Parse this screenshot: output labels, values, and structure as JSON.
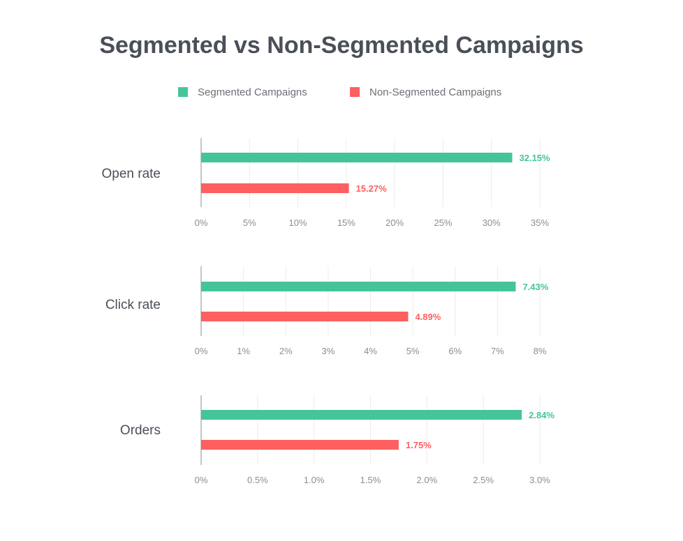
{
  "title": "Segmented vs Non-Segmented Campaigns",
  "colors": {
    "segmented": "#45c49a",
    "non_segmented": "#fe5f5f",
    "grid": "#ececec",
    "axis": "#8c8c8c",
    "title": "#4a4f58"
  },
  "legend": {
    "placement": "top-center",
    "items": [
      {
        "label": "Segmented Campaigns",
        "color": "#45c49a"
      },
      {
        "label": "Non-Segmented Campaigns",
        "color": "#fe5f5f"
      }
    ]
  },
  "chart_data": [
    {
      "type": "bar",
      "orientation": "horizontal",
      "category": "Open rate",
      "series": [
        {
          "name": "Segmented Campaigns",
          "value": 32.15,
          "label": "32.15%"
        },
        {
          "name": "Non-Segmented Campaigns",
          "value": 15.27,
          "label": "15.27%"
        }
      ],
      "xlim": [
        0,
        35
      ],
      "ticks": [
        0,
        5,
        10,
        15,
        20,
        25,
        30,
        35
      ],
      "tick_labels": [
        "0%",
        "5%",
        "10%",
        "15%",
        "20%",
        "25%",
        "30%",
        "35%"
      ],
      "grid": true
    },
    {
      "type": "bar",
      "orientation": "horizontal",
      "category": "Click rate",
      "series": [
        {
          "name": "Segmented Campaigns",
          "value": 7.43,
          "label": "7.43%"
        },
        {
          "name": "Non-Segmented Campaigns",
          "value": 4.89,
          "label": "4.89%"
        }
      ],
      "xlim": [
        0,
        8
      ],
      "ticks": [
        0,
        1,
        2,
        3,
        4,
        5,
        6,
        7,
        8
      ],
      "tick_labels": [
        "0%",
        "1%",
        "2%",
        "3%",
        "4%",
        "5%",
        "6%",
        "7%",
        "8%"
      ],
      "grid": true
    },
    {
      "type": "bar",
      "orientation": "horizontal",
      "category": "Orders",
      "series": [
        {
          "name": "Segmented Campaigns",
          "value": 2.84,
          "label": "2.84%"
        },
        {
          "name": "Non-Segmented Campaigns",
          "value": 1.75,
          "label": "1.75%"
        }
      ],
      "xlim": [
        0,
        3
      ],
      "ticks": [
        0,
        0.5,
        1,
        1.5,
        2,
        2.5,
        3
      ],
      "tick_labels": [
        "0%",
        "0.5%",
        "1.0%",
        "1.5%",
        "2.0%",
        "2.5%",
        "3.0%"
      ],
      "grid": true
    }
  ]
}
